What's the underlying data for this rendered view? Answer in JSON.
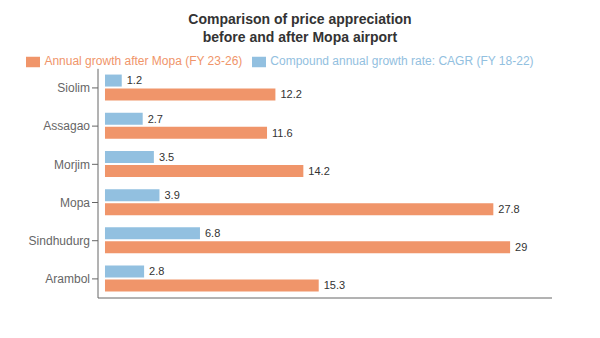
{
  "chart_data": {
    "type": "bar",
    "orientation": "horizontal",
    "title": "Comparison of price appreciation\nbefore and after Mopa airport",
    "categories": [
      "Siolim",
      "Assagao",
      "Morjim",
      "Mopa",
      "Sindhudurg",
      "Arambol"
    ],
    "series": [
      {
        "name": "Compound annual growth rate: CAGR (FY 18-22)",
        "color": "#92C0E0",
        "values": [
          1.2,
          2.7,
          3.5,
          3.9,
          6.8,
          2.8
        ]
      },
      {
        "name": "Annual growth after Mopa (FY 23-26)",
        "color": "#F0956A",
        "values": [
          12.2,
          11.6,
          14.2,
          27.8,
          29.0,
          15.3
        ]
      }
    ],
    "xlim": [
      -0.5,
      32
    ],
    "tick_labels": "y",
    "data_labels": true,
    "grid": false,
    "legend": "top"
  }
}
